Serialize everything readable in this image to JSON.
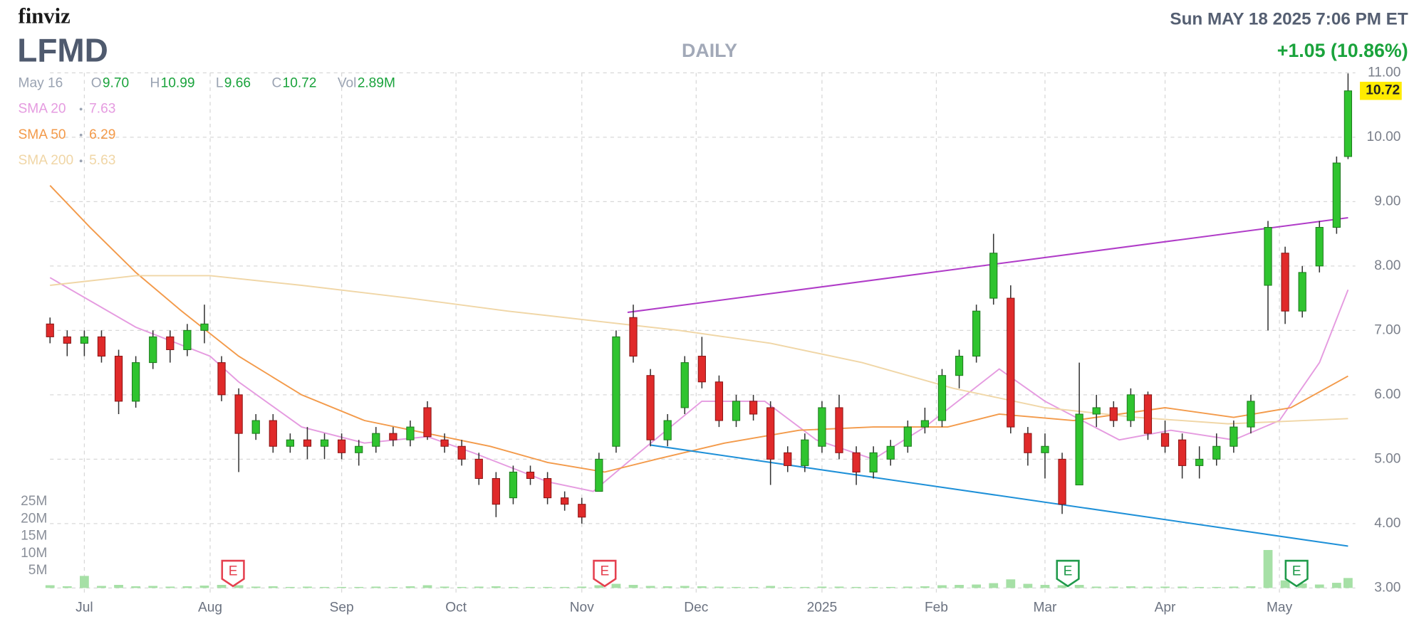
{
  "header": {
    "logo": "finviz",
    "ticker": "LFMD",
    "period": "DAILY",
    "datetime": "Sun MAY 18 2025 7:06 PM ET",
    "change": "+1.05 (10.86%)",
    "date": "May 16",
    "ohlc": [
      {
        "key": "O",
        "value": "9.70"
      },
      {
        "key": "H",
        "value": "10.99"
      },
      {
        "key": "L",
        "value": "9.66"
      },
      {
        "key": "C",
        "value": "10.72"
      },
      {
        "key": "Vol",
        "value": "2.89M"
      }
    ],
    "last_price": "10.72"
  },
  "chart_data": {
    "type": "candlestick",
    "xlim": [
      0,
      227
    ],
    "ylim": [
      3,
      11
    ],
    "xticks": [
      {
        "value": 6,
        "label": "Jul"
      },
      {
        "value": 28,
        "label": "Aug"
      },
      {
        "value": 51,
        "label": "Sep"
      },
      {
        "value": 71,
        "label": "Oct"
      },
      {
        "value": 93,
        "label": "Nov"
      },
      {
        "value": 113,
        "label": "Dec"
      },
      {
        "value": 135,
        "label": "2025"
      },
      {
        "value": 155,
        "label": "Feb"
      },
      {
        "value": 174,
        "label": "Mar"
      },
      {
        "value": 195,
        "label": "Apr"
      },
      {
        "value": 215,
        "label": "May"
      }
    ],
    "yticks": [
      {
        "value": 3,
        "label": "3.00"
      },
      {
        "value": 4,
        "label": "4.00"
      },
      {
        "value": 5,
        "label": "5.00"
      },
      {
        "value": 6,
        "label": "6.00"
      },
      {
        "value": 7,
        "label": "7.00"
      },
      {
        "value": 8,
        "label": "8.00"
      },
      {
        "value": 9,
        "label": "9.00"
      },
      {
        "value": 10,
        "label": "10.00"
      },
      {
        "value": 11,
        "label": "11.00"
      }
    ],
    "volume_lim": [
      0,
      25
    ],
    "volume_ticks": [
      {
        "value": 5,
        "label": "5M"
      },
      {
        "value": 10,
        "label": "10M"
      },
      {
        "value": 15,
        "label": "15M"
      },
      {
        "value": 20,
        "label": "20M"
      },
      {
        "value": 25,
        "label": "25M"
      }
    ],
    "grid": true,
    "up_color": "#2fc42f",
    "down_color": "#e02a2a",
    "candle_fields": [
      "x",
      "open",
      "high",
      "low",
      "close",
      "volume"
    ],
    "candles": [
      [
        0,
        7.1,
        7.2,
        6.8,
        6.9,
        0.8
      ],
      [
        3,
        6.9,
        7.0,
        6.6,
        6.8,
        0.5
      ],
      [
        6,
        6.8,
        7.0,
        6.6,
        6.9,
        3.5
      ],
      [
        9,
        6.9,
        7.0,
        6.5,
        6.6,
        0.6
      ],
      [
        12,
        6.6,
        6.7,
        5.7,
        5.9,
        0.9
      ],
      [
        15,
        5.9,
        6.6,
        5.8,
        6.5,
        0.5
      ],
      [
        18,
        6.5,
        7.0,
        6.4,
        6.9,
        0.6
      ],
      [
        21,
        6.9,
        7.0,
        6.5,
        6.7,
        0.4
      ],
      [
        24,
        6.7,
        7.1,
        6.6,
        7.0,
        0.5
      ],
      [
        27,
        7.0,
        7.4,
        6.8,
        7.1,
        0.7
      ],
      [
        30,
        6.5,
        6.6,
        5.9,
        6.0,
        0.9
      ],
      [
        33,
        6.0,
        6.1,
        4.8,
        5.4,
        0.8
      ],
      [
        36,
        5.4,
        5.7,
        5.3,
        5.6,
        0.4
      ],
      [
        39,
        5.6,
        5.7,
        5.1,
        5.2,
        0.5
      ],
      [
        42,
        5.2,
        5.4,
        5.1,
        5.3,
        0.3
      ],
      [
        45,
        5.3,
        5.5,
        5.0,
        5.2,
        0.4
      ],
      [
        48,
        5.2,
        5.4,
        5.0,
        5.3,
        0.3
      ],
      [
        51,
        5.3,
        5.4,
        5.0,
        5.1,
        0.3
      ],
      [
        54,
        5.1,
        5.3,
        4.9,
        5.2,
        0.3
      ],
      [
        57,
        5.2,
        5.5,
        5.1,
        5.4,
        0.4
      ],
      [
        60,
        5.4,
        5.5,
        5.2,
        5.3,
        0.3
      ],
      [
        63,
        5.3,
        5.6,
        5.2,
        5.5,
        0.5
      ],
      [
        66,
        5.8,
        5.9,
        5.3,
        5.35,
        0.8
      ],
      [
        69,
        5.3,
        5.4,
        5.1,
        5.2,
        0.4
      ],
      [
        72,
        5.2,
        5.3,
        4.9,
        5.0,
        0.3
      ],
      [
        75,
        5.0,
        5.1,
        4.6,
        4.7,
        0.4
      ],
      [
        78,
        4.7,
        4.8,
        4.1,
        4.3,
        0.5
      ],
      [
        81,
        4.4,
        4.9,
        4.3,
        4.8,
        0.3
      ],
      [
        84,
        4.8,
        4.9,
        4.6,
        4.7,
        0.3
      ],
      [
        87,
        4.7,
        4.8,
        4.3,
        4.4,
        0.3
      ],
      [
        90,
        4.4,
        4.5,
        4.2,
        4.3,
        0.3
      ],
      [
        93,
        4.3,
        4.4,
        4.0,
        4.1,
        0.4
      ],
      [
        96,
        4.5,
        5.1,
        4.5,
        5.0,
        0.8
      ],
      [
        99,
        5.2,
        7.0,
        5.1,
        6.9,
        1.2
      ],
      [
        102,
        7.2,
        7.4,
        6.5,
        6.6,
        0.9
      ],
      [
        105,
        6.3,
        6.4,
        5.2,
        5.3,
        0.6
      ],
      [
        108,
        5.3,
        5.7,
        5.2,
        5.6,
        0.5
      ],
      [
        111,
        5.8,
        6.6,
        5.7,
        6.5,
        0.6
      ],
      [
        114,
        6.6,
        6.9,
        6.1,
        6.2,
        0.5
      ],
      [
        117,
        6.2,
        6.3,
        5.5,
        5.6,
        0.4
      ],
      [
        120,
        5.6,
        6.0,
        5.5,
        5.9,
        0.3
      ],
      [
        123,
        5.9,
        6.0,
        5.6,
        5.7,
        0.3
      ],
      [
        126,
        5.8,
        5.9,
        4.6,
        5.0,
        0.6
      ],
      [
        129,
        5.1,
        5.2,
        4.8,
        4.9,
        0.3
      ],
      [
        132,
        4.9,
        5.4,
        4.8,
        5.3,
        0.3
      ],
      [
        135,
        5.2,
        5.9,
        5.1,
        5.8,
        0.4
      ],
      [
        138,
        5.8,
        6.0,
        5.0,
        5.1,
        0.4
      ],
      [
        141,
        5.1,
        5.2,
        4.6,
        4.8,
        0.3
      ],
      [
        144,
        4.8,
        5.2,
        4.7,
        5.1,
        0.3
      ],
      [
        147,
        5.0,
        5.3,
        4.9,
        5.2,
        0.3
      ],
      [
        150,
        5.2,
        5.6,
        5.1,
        5.5,
        0.4
      ],
      [
        153,
        5.5,
        5.8,
        5.4,
        5.6,
        0.5
      ],
      [
        156,
        5.6,
        6.4,
        5.5,
        6.3,
        0.8
      ],
      [
        159,
        6.3,
        6.7,
        6.1,
        6.6,
        0.9
      ],
      [
        162,
        6.6,
        7.4,
        6.5,
        7.3,
        1.0
      ],
      [
        165,
        7.5,
        8.5,
        7.4,
        8.2,
        1.4
      ],
      [
        168,
        7.5,
        7.7,
        5.4,
        5.5,
        2.5
      ],
      [
        171,
        5.4,
        5.5,
        4.9,
        5.1,
        1.2
      ],
      [
        174,
        5.1,
        5.4,
        4.7,
        5.2,
        0.9
      ],
      [
        177,
        5.0,
        5.1,
        4.15,
        4.3,
        0.8
      ],
      [
        180,
        4.6,
        6.5,
        4.6,
        5.7,
        0.9
      ],
      [
        183,
        5.7,
        6.0,
        5.5,
        5.8,
        0.4
      ],
      [
        186,
        5.8,
        5.9,
        5.5,
        5.6,
        0.4
      ],
      [
        189,
        5.6,
        6.1,
        5.5,
        6.0,
        0.5
      ],
      [
        192,
        6.0,
        6.05,
        5.3,
        5.4,
        0.4
      ],
      [
        195,
        5.4,
        5.6,
        5.1,
        5.2,
        0.4
      ],
      [
        198,
        5.3,
        5.4,
        4.7,
        4.9,
        0.4
      ],
      [
        201,
        4.9,
        5.2,
        4.7,
        5.0,
        0.3
      ],
      [
        204,
        5.0,
        5.4,
        4.9,
        5.2,
        0.3
      ],
      [
        207,
        5.2,
        5.6,
        5.1,
        5.5,
        0.4
      ],
      [
        210,
        5.5,
        6.0,
        5.4,
        5.9,
        0.5
      ],
      [
        213,
        7.7,
        8.7,
        7.0,
        8.6,
        11.0
      ],
      [
        216,
        8.2,
        8.3,
        7.1,
        7.3,
        2.2
      ],
      [
        219,
        7.3,
        8.0,
        7.2,
        7.9,
        1.3
      ],
      [
        222,
        8.0,
        8.7,
        7.9,
        8.6,
        1.0
      ],
      [
        225,
        8.6,
        9.7,
        8.5,
        9.6,
        1.5
      ],
      [
        227,
        9.7,
        10.99,
        9.66,
        10.72,
        2.89
      ]
    ],
    "series": [
      {
        "name": "SMA 20",
        "last": "7.63",
        "color": "#e59be0",
        "x": [
          0,
          15,
          28,
          33,
          44,
          55,
          66,
          74,
          87,
          95,
          103,
          114,
          125,
          134,
          144,
          153,
          166,
          174,
          187,
          196,
          207,
          215,
          222,
          227
        ],
        "values": [
          7.82,
          7.05,
          6.6,
          6.2,
          5.5,
          5.25,
          5.35,
          5.1,
          4.65,
          4.5,
          5.1,
          5.9,
          5.9,
          5.3,
          5.0,
          5.5,
          6.4,
          5.9,
          5.3,
          5.45,
          5.3,
          5.6,
          6.5,
          7.63
        ]
      },
      {
        "name": "SMA 50",
        "last": "6.29",
        "color": "#f39a4a",
        "x": [
          0,
          7,
          15,
          23,
          33,
          44,
          55,
          66,
          77,
          87,
          97,
          106,
          118,
          131,
          144,
          157,
          166,
          179,
          195,
          207,
          217,
          227
        ],
        "values": [
          9.25,
          8.6,
          7.9,
          7.3,
          6.6,
          6.0,
          5.6,
          5.4,
          5.2,
          4.95,
          4.8,
          5.0,
          5.25,
          5.45,
          5.5,
          5.5,
          5.7,
          5.6,
          5.8,
          5.65,
          5.8,
          6.29
        ]
      },
      {
        "name": "SMA 200",
        "last": "5.63",
        "color": "#f0d6a6",
        "x": [
          0,
          15,
          28,
          44,
          63,
          80,
          95,
          110,
          126,
          142,
          158,
          174,
          190,
          206,
          227
        ],
        "values": [
          7.7,
          7.85,
          7.85,
          7.7,
          7.5,
          7.3,
          7.15,
          7.0,
          6.8,
          6.5,
          6.1,
          5.8,
          5.65,
          5.55,
          5.63
        ]
      }
    ],
    "trendlines": [
      {
        "color": "#b03cc8",
        "x": [
          101,
          227
        ],
        "values": [
          7.28,
          8.75
        ]
      },
      {
        "color": "#1e90d8",
        "x": [
          105,
          227
        ],
        "values": [
          5.22,
          3.65
        ]
      }
    ],
    "earnings": [
      {
        "x": 32,
        "label": "E",
        "color": "#e5404f"
      },
      {
        "x": 97,
        "label": "E",
        "color": "#e5404f"
      },
      {
        "x": 178,
        "label": "E",
        "color": "#1f9a4a"
      },
      {
        "x": 218,
        "label": "E",
        "color": "#1f9a4a"
      }
    ]
  }
}
